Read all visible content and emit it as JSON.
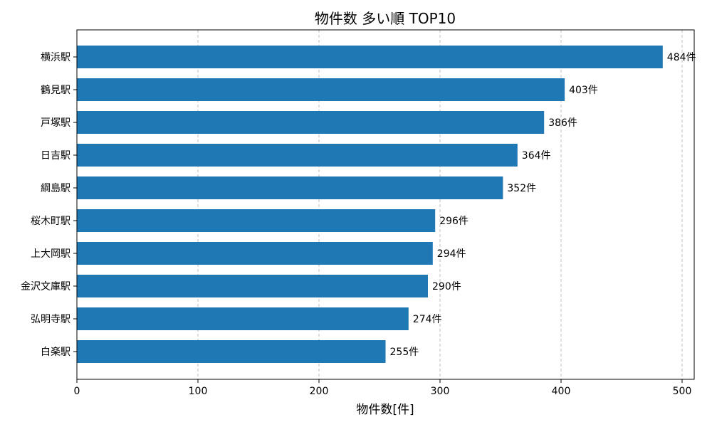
{
  "chart_data": {
    "type": "bar",
    "orientation": "horizontal",
    "title": "物件数 多い順 TOP10",
    "xlabel": "物件数[件]",
    "ylabel": "",
    "xlim": [
      0,
      510
    ],
    "xticks": [
      0,
      100,
      200,
      300,
      400,
      500
    ],
    "grid": "x-dashed",
    "bar_color": "#1f77b4",
    "value_suffix": "件",
    "categories": [
      "横浜駅",
      "鶴見駅",
      "戸塚駅",
      "日吉駅",
      "綱島駅",
      "桜木町駅",
      "上大岡駅",
      "金沢文庫駅",
      "弘明寺駅",
      "白楽駅"
    ],
    "values": [
      484,
      403,
      386,
      364,
      352,
      296,
      294,
      290,
      274,
      255
    ],
    "value_labels": [
      "484件",
      "403件",
      "386件",
      "364件",
      "352件",
      "296件",
      "294件",
      "290件",
      "274件",
      "255件"
    ]
  }
}
